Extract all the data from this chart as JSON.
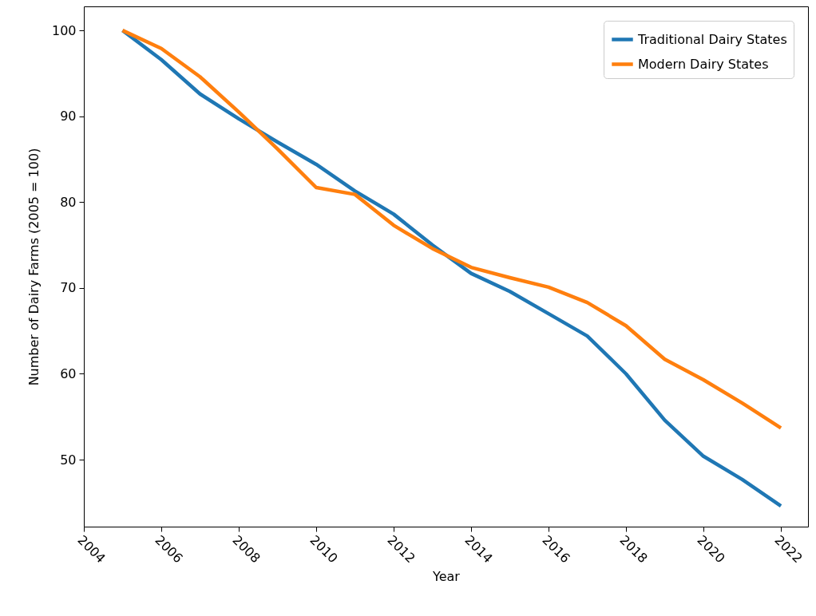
{
  "chart_data": {
    "type": "line",
    "xlabel": "Year",
    "ylabel": "Number of Dairy Farms (2005 = 100)",
    "x": [
      2005,
      2006,
      2007,
      2008,
      2009,
      2010,
      2011,
      2012,
      2013,
      2014,
      2015,
      2016,
      2017,
      2018,
      2019,
      2020,
      2021,
      2022
    ],
    "series": [
      {
        "name": "Traditional Dairy States",
        "color": "#1f77b4",
        "values": [
          100,
          96.6,
          92.6,
          89.7,
          87,
          84.4,
          81.3,
          78.6,
          75,
          71.7,
          69.6,
          67,
          64.4,
          60,
          54.6,
          50.4,
          47.7,
          44.6
        ]
      },
      {
        "name": "Modern Dairy States",
        "color": "#ff7f0e",
        "values": [
          100,
          97.9,
          94.6,
          90.5,
          86.2,
          81.7,
          80.9,
          77.3,
          74.6,
          72.4,
          71.2,
          70.1,
          68.3,
          65.6,
          61.7,
          59.3,
          56.6,
          53.7
        ]
      }
    ],
    "xlim": [
      2004,
      2022.7
    ],
    "xticks": [
      2004,
      2006,
      2008,
      2010,
      2012,
      2014,
      2016,
      2018,
      2020,
      2022
    ],
    "ylim": [
      42.2,
      102.8
    ],
    "yticks": [
      50,
      60,
      70,
      80,
      90,
      100
    ],
    "grid": false,
    "legend": "top right",
    "marker": "none",
    "line_style": "solid"
  }
}
